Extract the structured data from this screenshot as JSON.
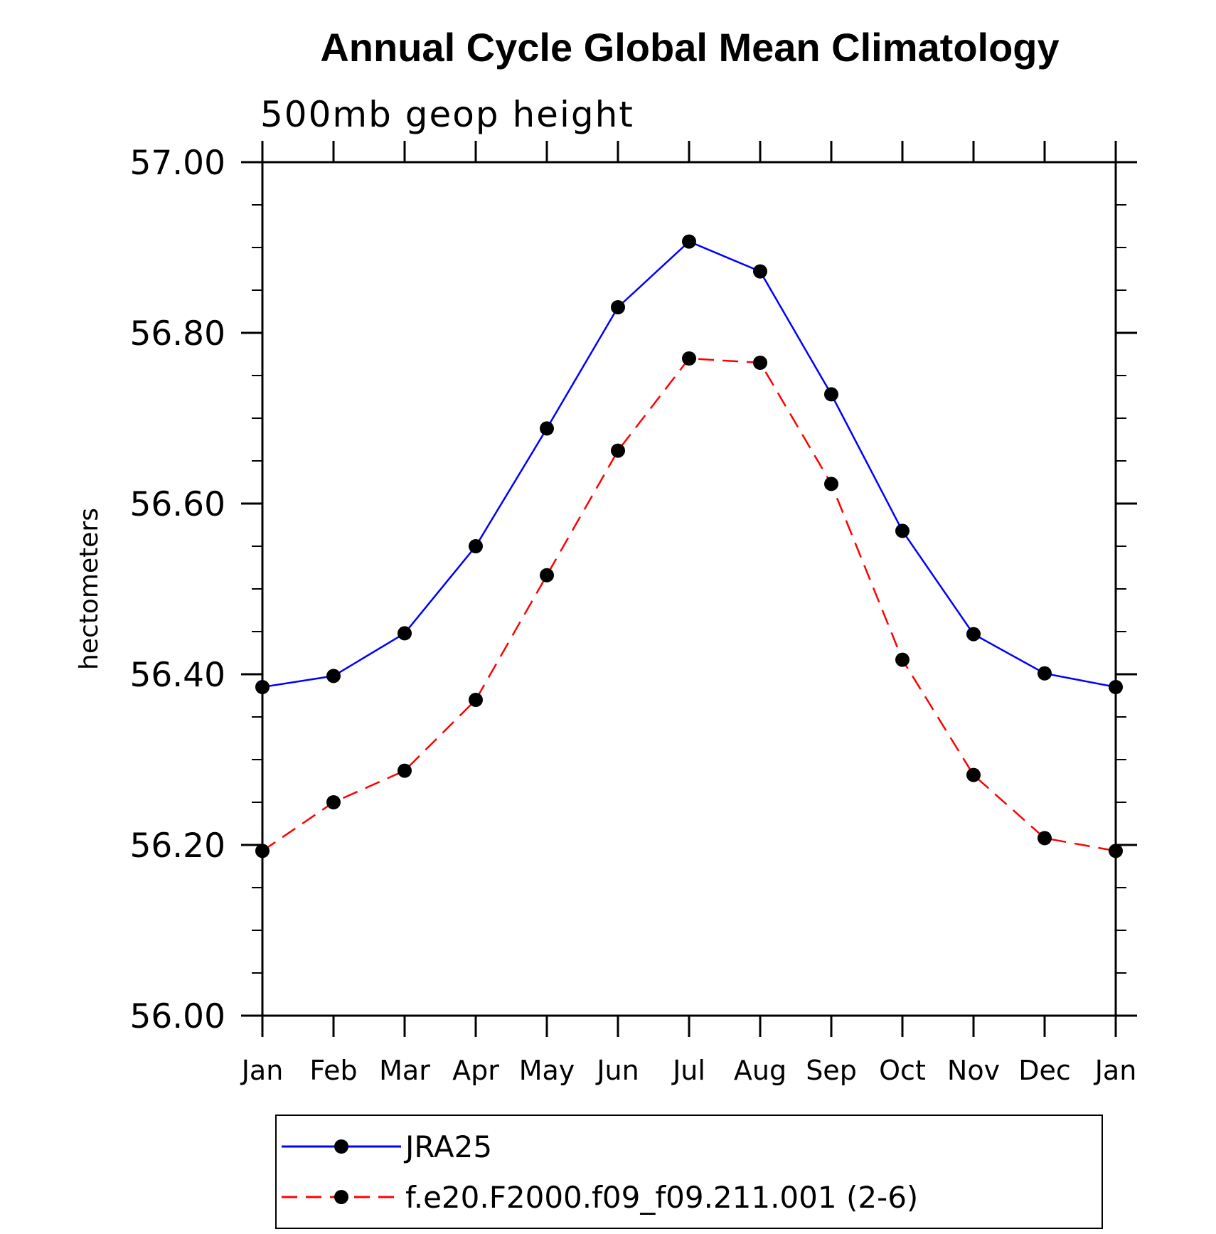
{
  "chart_data": {
    "type": "line",
    "title": "Annual Cycle Global Mean Climatology",
    "subtitle": "500mb geop height",
    "xlabel": "",
    "ylabel": "hectometers",
    "categories": [
      "Jan",
      "Feb",
      "Mar",
      "Apr",
      "May",
      "Jun",
      "Jul",
      "Aug",
      "Sep",
      "Oct",
      "Nov",
      "Dec",
      "Jan"
    ],
    "ylim": [
      56.0,
      57.0
    ],
    "y_ticks": [
      "56.00",
      "56.20",
      "56.40",
      "56.60",
      "56.80",
      "57.00"
    ],
    "grid": false,
    "legend_position": "bottom",
    "series": [
      {
        "name": "JRA25",
        "color": "#0000ff",
        "line_style": "solid",
        "marker": "filled-circle",
        "values": [
          56.385,
          56.398,
          56.448,
          56.55,
          56.688,
          56.83,
          56.907,
          56.872,
          56.728,
          56.568,
          56.447,
          56.401,
          56.385
        ]
      },
      {
        "name": "f.e20.F2000.f09_f09.211.001 (2-6)",
        "color": "#ff0000",
        "line_style": "dashed",
        "marker": "filled-circle",
        "values": [
          56.193,
          56.25,
          56.287,
          56.37,
          56.516,
          56.662,
          56.77,
          56.765,
          56.623,
          56.417,
          56.282,
          56.208,
          56.193
        ]
      }
    ]
  }
}
